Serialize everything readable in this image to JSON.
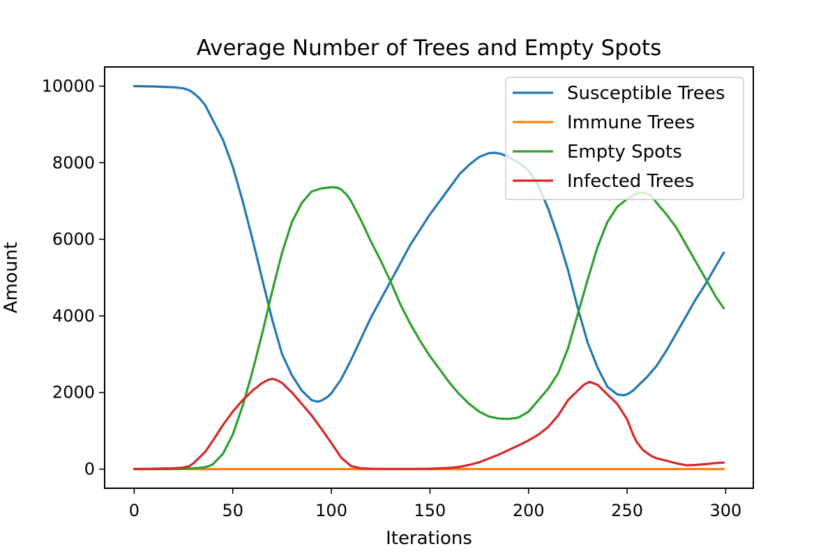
{
  "chart_data": {
    "type": "line",
    "title": "Average Number of Trees and Empty Spots",
    "xlabel": "Iterations",
    "ylabel": "Amount",
    "xlim": [
      -15,
      314
    ],
    "ylim": [
      -500,
      10500
    ],
    "xticks": [
      0,
      50,
      100,
      150,
      200,
      250,
      300
    ],
    "yticks": [
      0,
      2000,
      4000,
      6000,
      8000,
      10000
    ],
    "grid": false,
    "legend": "upper right",
    "series": [
      {
        "name": "Susceptible Trees",
        "color": "#1f77b4",
        "x": [
          0,
          10,
          20,
          25,
          28,
          30,
          33,
          36,
          40,
          45,
          50,
          55,
          60,
          65,
          70,
          75,
          80,
          85,
          90,
          93,
          95,
          98,
          100,
          105,
          110,
          120,
          130,
          140,
          150,
          160,
          165,
          170,
          175,
          180,
          183,
          186,
          190,
          195,
          200,
          205,
          210,
          215,
          220,
          225,
          230,
          235,
          240,
          245,
          248,
          250,
          253,
          256,
          260,
          265,
          270,
          275,
          280,
          285,
          290,
          295,
          299
        ],
        "y": [
          10000,
          9990,
          9970,
          9940,
          9890,
          9820,
          9690,
          9500,
          9100,
          8600,
          7900,
          7000,
          6000,
          4950,
          3900,
          3000,
          2450,
          2050,
          1800,
          1760,
          1790,
          1880,
          1980,
          2350,
          2850,
          3950,
          4900,
          5850,
          6650,
          7350,
          7700,
          7950,
          8150,
          8250,
          8260,
          8230,
          8150,
          8000,
          7800,
          7400,
          6800,
          6050,
          5200,
          4200,
          3300,
          2650,
          2150,
          1950,
          1930,
          1950,
          2050,
          2200,
          2400,
          2700,
          3100,
          3550,
          4000,
          4450,
          4850,
          5300,
          5650
        ]
      },
      {
        "name": "Immune Trees",
        "color": "#ff7f0e",
        "x": [
          0,
          299
        ],
        "y": [
          0,
          0
        ]
      },
      {
        "name": "Empty Spots",
        "color": "#2ca02c",
        "x": [
          0,
          10,
          20,
          25,
          30,
          35,
          38,
          40,
          45,
          50,
          55,
          60,
          65,
          70,
          75,
          80,
          85,
          90,
          95,
          100,
          103,
          105,
          108,
          110,
          115,
          120,
          125,
          130,
          135,
          140,
          145,
          150,
          160,
          165,
          170,
          175,
          180,
          185,
          190,
          193,
          195,
          200,
          205,
          210,
          215,
          220,
          225,
          230,
          235,
          240,
          245,
          250,
          255,
          258,
          262,
          265,
          270,
          275,
          280,
          285,
          290,
          295,
          299
        ],
        "y": [
          0,
          0,
          5,
          10,
          20,
          40,
          80,
          130,
          400,
          900,
          1650,
          2550,
          3550,
          4650,
          5650,
          6450,
          6950,
          7250,
          7330,
          7360,
          7350,
          7300,
          7150,
          7000,
          6500,
          5950,
          5450,
          4900,
          4300,
          3800,
          3350,
          2950,
          2250,
          1950,
          1700,
          1500,
          1370,
          1320,
          1310,
          1330,
          1350,
          1500,
          1800,
          2100,
          2500,
          3150,
          4050,
          4950,
          5800,
          6450,
          6850,
          7050,
          7200,
          7220,
          7150,
          6950,
          6650,
          6300,
          5850,
          5400,
          4950,
          4500,
          4200
        ]
      },
      {
        "name": "Infected Trees",
        "color": "#d62728",
        "x": [
          0,
          10,
          20,
          25,
          28,
          30,
          33,
          36,
          40,
          45,
          50,
          55,
          60,
          65,
          68,
          70,
          72,
          75,
          80,
          85,
          90,
          95,
          100,
          105,
          110,
          115,
          120,
          130,
          140,
          150,
          160,
          165,
          170,
          175,
          180,
          185,
          190,
          195,
          200,
          205,
          210,
          215,
          220,
          225,
          228,
          231,
          235,
          240,
          245,
          250,
          253,
          255,
          258,
          262,
          265,
          270,
          275,
          280,
          285,
          290,
          295,
          299
        ],
        "y": [
          0,
          10,
          20,
          40,
          80,
          150,
          300,
          450,
          750,
          1150,
          1500,
          1800,
          2050,
          2250,
          2330,
          2360,
          2330,
          2250,
          2000,
          1700,
          1400,
          1050,
          680,
          300,
          80,
          20,
          10,
          5,
          5,
          10,
          30,
          60,
          110,
          180,
          280,
          380,
          500,
          620,
          750,
          900,
          1100,
          1400,
          1800,
          2050,
          2200,
          2280,
          2200,
          1950,
          1700,
          1300,
          900,
          700,
          500,
          350,
          280,
          220,
          150,
          100,
          110,
          130,
          160,
          170
        ]
      }
    ]
  }
}
